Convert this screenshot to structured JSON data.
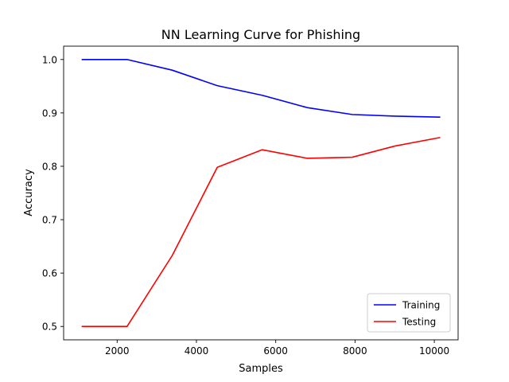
{
  "chart_data": {
    "type": "line",
    "title": "NN Learning Curve for Phishing",
    "xlabel": "Samples",
    "ylabel": "Accuracy",
    "xlim": [
      650,
      10600
    ],
    "ylim": [
      0.475,
      1.025
    ],
    "xticks": [
      2000,
      4000,
      6000,
      8000,
      10000
    ],
    "yticks": [
      0.5,
      0.6,
      0.7,
      0.8,
      0.9,
      1.0
    ],
    "xtick_labels": [
      "2000",
      "4000",
      "6000",
      "8000",
      "10000"
    ],
    "ytick_labels": [
      "0.5",
      "0.6",
      "0.7",
      "0.8",
      "0.9",
      "1.0"
    ],
    "x": [
      1105,
      2250,
      3390,
      4525,
      5660,
      6790,
      7930,
      9010,
      10150
    ],
    "series": [
      {
        "name": "Training",
        "color": "#0000ff",
        "values": [
          1.0,
          1.0,
          0.98,
          0.951,
          0.933,
          0.91,
          0.897,
          0.894,
          0.892
        ]
      },
      {
        "name": "Testing",
        "color": "#ff0000",
        "values": [
          0.5,
          0.5,
          0.633,
          0.798,
          0.831,
          0.815,
          0.817,
          0.838,
          0.854
        ]
      }
    ],
    "grid": false,
    "legend": "lower right"
  }
}
